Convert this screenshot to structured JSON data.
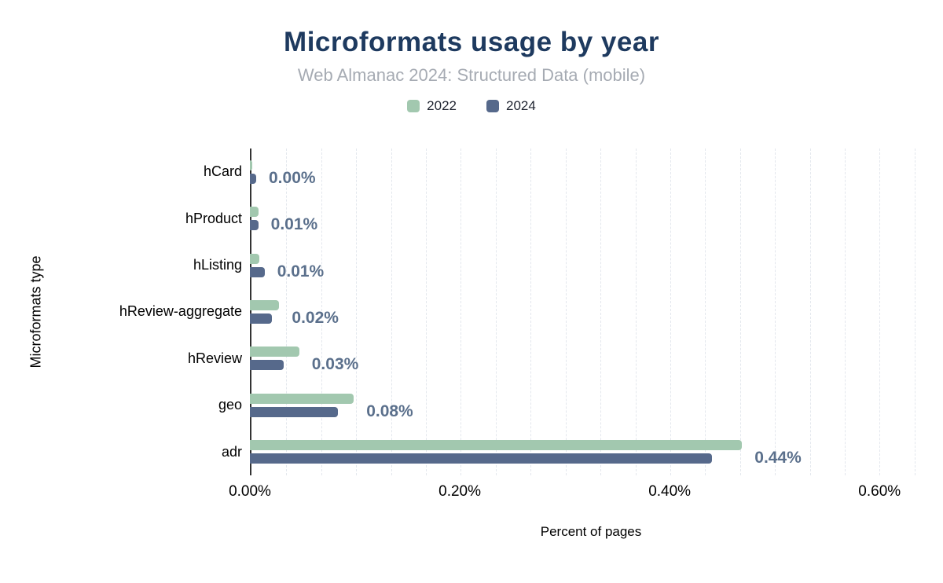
{
  "title": "Microformats usage by year",
  "subtitle": "Web Almanac 2024: Structured Data (mobile)",
  "y_axis_label": "Microformats type",
  "x_axis_label": "Percent of pages",
  "x_ticks": [
    "0.00%",
    "0.20%",
    "0.40%",
    "0.60%"
  ],
  "colors": {
    "title": "#1e3a5f",
    "subtitle": "#a6abb3",
    "data_label": "#5b708c",
    "axis": "#333333",
    "grid": "#e3e7ed",
    "series_2022": "#a2c8af",
    "series_2024": "#56698b"
  },
  "chart_data": {
    "type": "bar",
    "orientation": "horizontal",
    "title": "Microformats usage by year",
    "subtitle": "Web Almanac 2024: Structured Data (mobile)",
    "xlabel": "Percent of pages",
    "ylabel": "Microformats type",
    "xlim": [
      0,
      0.65
    ],
    "x_tick_values": [
      0,
      0.2,
      0.4,
      0.6
    ],
    "grid": {
      "style": "dashed",
      "step": 0.033333,
      "max": 0.637
    },
    "legend_position": "top",
    "categories": [
      "hCard",
      "hProduct",
      "hListing",
      "hReview-aggregate",
      "hReview",
      "geo",
      "adr"
    ],
    "series": [
      {
        "name": "2022",
        "color": "#a2c8af",
        "values": [
          0.002,
          0.008,
          0.009,
          0.028,
          0.047,
          0.099,
          0.469
        ]
      },
      {
        "name": "2024",
        "color": "#56698b",
        "values": [
          0.006,
          0.008,
          0.014,
          0.021,
          0.032,
          0.084,
          0.44
        ]
      }
    ],
    "data_labels": [
      "0.00%",
      "0.01%",
      "0.01%",
      "0.02%",
      "0.03%",
      "0.08%",
      "0.44%"
    ],
    "units": "percent of pages"
  }
}
